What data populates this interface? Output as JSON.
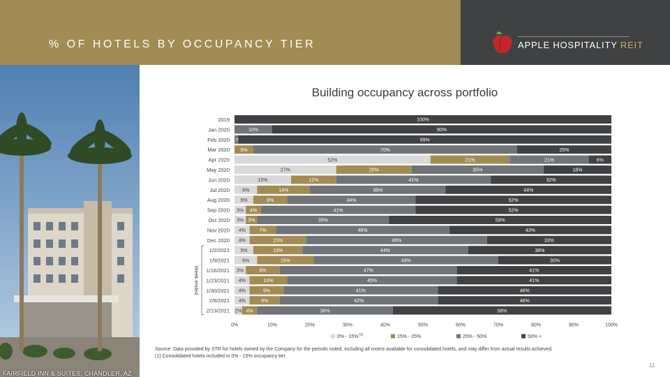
{
  "header": {
    "title": "% OF HOTELS BY OCCUPANCY TIER",
    "logo_main": "APPLE HOSPITALITY",
    "logo_suffix": "REIT"
  },
  "photo_caption": "FAIRFIELD INN & SUITES, CHANDLER, AZ",
  "colors": {
    "header_gold": "#a38b54",
    "header_dark": "#3f4143",
    "tier_0_15": "#d9d9d9",
    "tier_15_25": "#a38b54",
    "tier_25_50": "#707479",
    "tier_50_plus": "#3f4143"
  },
  "chart_data": {
    "type": "bar",
    "orientation": "horizontal",
    "stacked": true,
    "title": "Building occupancy across portfolio",
    "ylabel": "Week ended",
    "xlim": [
      0,
      100
    ],
    "x_ticks": [
      "0%",
      "10%",
      "20%",
      "30%",
      "40%",
      "50%",
      "60%",
      "70%",
      "80%",
      "90%",
      "100%"
    ],
    "legend_position": "bottom",
    "categories": [
      "2019",
      "Jan 2020",
      "Feb 2020",
      "Mar 2020",
      "Apr 2020",
      "May 2020",
      "Jun 2020",
      "Jul 2020",
      "Aug 2020",
      "Sep 2020",
      "Oct 2020",
      "Nov 2020",
      "Dec 2020",
      "1/2/2021",
      "1/9/2021",
      "1/16/2021",
      "1/23/2021",
      "1/30/2021",
      "2/6/2021",
      "2/13/2021"
    ],
    "series": [
      {
        "name": "0% - 15%",
        "legend_sup": "(1)",
        "values": [
          0,
          0,
          0,
          0,
          52,
          27,
          15,
          6,
          5,
          3,
          3,
          4,
          4,
          5,
          6,
          3,
          4,
          4,
          4,
          2
        ]
      },
      {
        "name": "15% - 25%",
        "values": [
          0,
          0,
          0,
          5,
          21,
          20,
          12,
          14,
          9,
          4,
          3,
          7,
          15,
          13,
          15,
          9,
          10,
          9,
          8,
          4
        ]
      },
      {
        "name": "25% - 50%",
        "values": [
          0,
          10,
          1,
          70,
          21,
          35,
          41,
          36,
          34,
          41,
          35,
          46,
          48,
          44,
          49,
          47,
          45,
          41,
          42,
          36
        ]
      },
      {
        "name": "50% +",
        "values": [
          100,
          90,
          99,
          25,
          6,
          18,
          32,
          44,
          52,
          52,
          59,
          43,
          33,
          38,
          30,
          41,
          41,
          46,
          46,
          58
        ]
      }
    ]
  },
  "footer": {
    "source": "Source:  Data provided by STR for hotels owned by the Company for the periods noted, including all rooms available for consolidated hotels, and may differ from actual results achieved.",
    "footnote": "(1)     Consolidated hotels included in 0% - 15% occupancy tier.",
    "page_number": "11"
  }
}
